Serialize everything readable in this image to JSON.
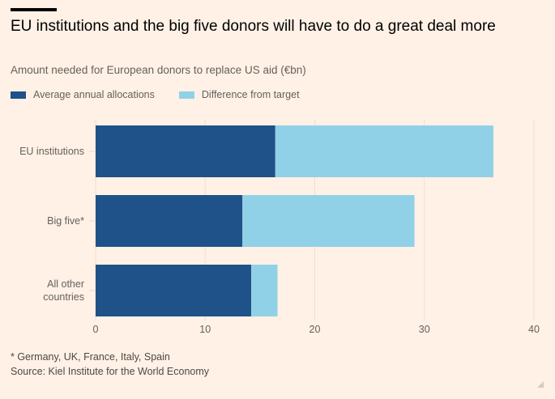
{
  "header": {
    "title": "EU institutions and the big five donors will have to do a great deal more",
    "subtitle": "Amount needed for European donors to replace US aid (€bn)"
  },
  "legend": [
    {
      "label": "Average annual allocations",
      "color": "#1f5289"
    },
    {
      "label": "Difference from target",
      "color": "#91d1e8"
    }
  ],
  "footer": {
    "note": "* Germany, UK, France, Italy, Spain",
    "source": "Source: Kiel Institute for the World Economy"
  },
  "chart_data": {
    "type": "bar",
    "orientation": "horizontal",
    "stacked": true,
    "title": "EU institutions and the big five donors will have to do a great deal more",
    "subtitle": "Amount needed for European donors to replace US aid (€bn)",
    "categories": [
      [
        "EU institutions"
      ],
      [
        "Big five*"
      ],
      [
        "All other",
        "countries"
      ]
    ],
    "series": [
      {
        "name": "Average annual allocations",
        "color": "#1f5289",
        "values": [
          16.4,
          13.4,
          14.2
        ]
      },
      {
        "name": "Difference from target",
        "color": "#91d1e8",
        "values": [
          19.9,
          15.7,
          2.4
        ]
      }
    ],
    "xlim": [
      0,
      40
    ],
    "xticks": [
      0,
      10,
      20,
      30,
      40
    ],
    "xlabel": "",
    "ylabel": "",
    "grid": true,
    "legend_position": "top-left"
  }
}
